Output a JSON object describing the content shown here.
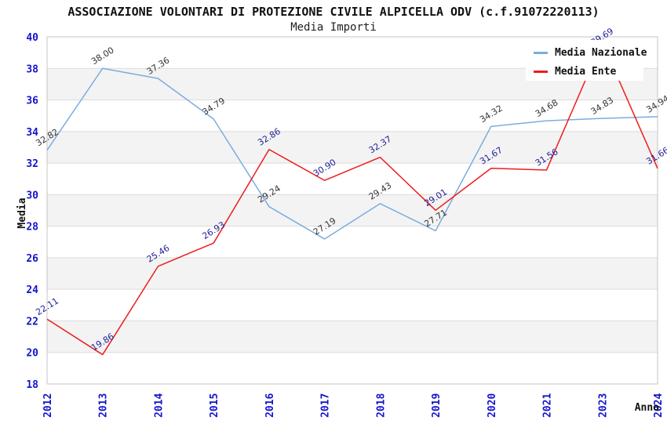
{
  "header": {
    "title": "ASSOCIAZIONE VOLONTARI DI PROTEZIONE CIVILE ALPICELLA ODV (c.f.91072220113)",
    "subtitle": "Media Importi"
  },
  "chart_data": {
    "type": "line",
    "title": "ASSOCIAZIONE VOLONTARI DI PROTEZIONE CIVILE ALPICELLA ODV (c.f.91072220113)",
    "subtitle": "Media Importi",
    "xlabel": "Anno",
    "ylabel": "Media",
    "categories": [
      "2012",
      "2013",
      "2014",
      "2015",
      "2016",
      "2017",
      "2018",
      "2019",
      "2020",
      "2021",
      "2023",
      "2024"
    ],
    "series": [
      {
        "name": "Media Nazionale",
        "color": "#7aadde",
        "label_color": "#333333",
        "values": [
          32.82,
          38.0,
          37.36,
          34.79,
          29.24,
          27.19,
          29.43,
          27.71,
          34.32,
          34.68,
          34.83,
          34.94
        ]
      },
      {
        "name": "Media Ente",
        "color": "#ee1c1c",
        "label_color": "#1c1c99",
        "values": [
          22.11,
          19.86,
          25.46,
          26.93,
          32.86,
          30.9,
          32.37,
          29.01,
          31.67,
          31.56,
          39.69,
          31.66
        ]
      }
    ],
    "ylim": [
      18,
      40
    ],
    "y_ticks": [
      18,
      20,
      22,
      24,
      26,
      28,
      30,
      32,
      34,
      36,
      38,
      40
    ],
    "grid": "horizontal-bands",
    "legend_position": "top-right",
    "style": {
      "band_color": "#f3f3f3",
      "grid_line_color": "#dcdcdc",
      "axis_color": "#c4c4c4",
      "tick_label_color": "#1414cc",
      "axis_title_color": "#111111"
    }
  }
}
